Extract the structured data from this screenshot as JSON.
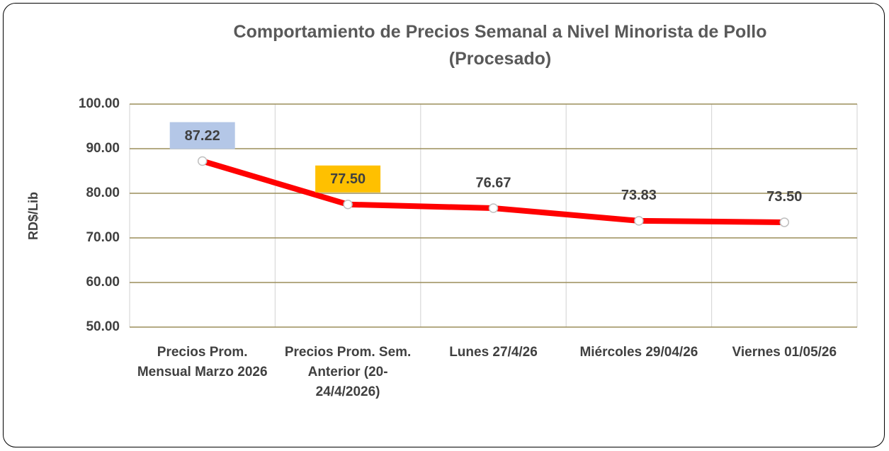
{
  "chart_data": {
    "type": "line",
    "title": "Comportamiento de Precios Semanal a Nivel Minorista de Pollo (Procesado)",
    "y_label": "RD$/Lib",
    "categories": [
      "Precios Prom. Mensual Marzo 2026",
      "Precios Prom. Sem. Anterior (20-24/4/2026)",
      "Lunes 27/4/26",
      "Miércoles 29/04/26",
      "Viernes  01/05/26"
    ],
    "values": [
      87.22,
      77.5,
      76.67,
      73.83,
      73.5
    ],
    "value_labels": [
      "87.22",
      "77.50",
      "76.67",
      "73.83",
      "73.50"
    ],
    "value_label_backgrounds": [
      "#b4c7e7",
      "#ffc000",
      null,
      null,
      null
    ],
    "color": "#ff0000",
    "ylim": [
      50,
      100
    ],
    "yticks": [
      {
        "value": 50,
        "label": "50.00"
      },
      {
        "value": 60,
        "label": "60.00"
      },
      {
        "value": 70,
        "label": "70.00"
      },
      {
        "value": 80,
        "label": "80.00"
      },
      {
        "value": 90,
        "label": "90.00"
      },
      {
        "value": 100,
        "label": "100.00"
      }
    ],
    "grid": true
  }
}
